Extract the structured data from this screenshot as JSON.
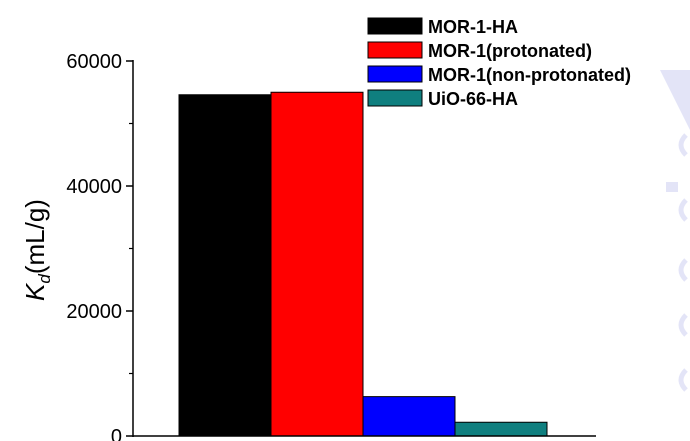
{
  "chart_data": {
    "type": "bar",
    "ylabel_main": "K",
    "ylabel_sub": "d",
    "ylabel_unit": "(mL/g)",
    "ylim": [
      0,
      60000
    ],
    "yticks": [
      0,
      20000,
      40000,
      60000
    ],
    "yticks_minor": [
      10000,
      30000,
      50000
    ],
    "grid": false,
    "legend_position": "top-right",
    "series": [
      {
        "name": "MOR-1-HA",
        "value": 54600,
        "color": "#000000"
      },
      {
        "name": "MOR-1(protonated)",
        "value": 55000,
        "color": "#ff0000"
      },
      {
        "name": "MOR-1(non-protonated)",
        "value": 6300,
        "color": "#0000ff"
      },
      {
        "name": "UiO-66-HA",
        "value": 2200,
        "color": "#0f7f7f"
      }
    ]
  }
}
